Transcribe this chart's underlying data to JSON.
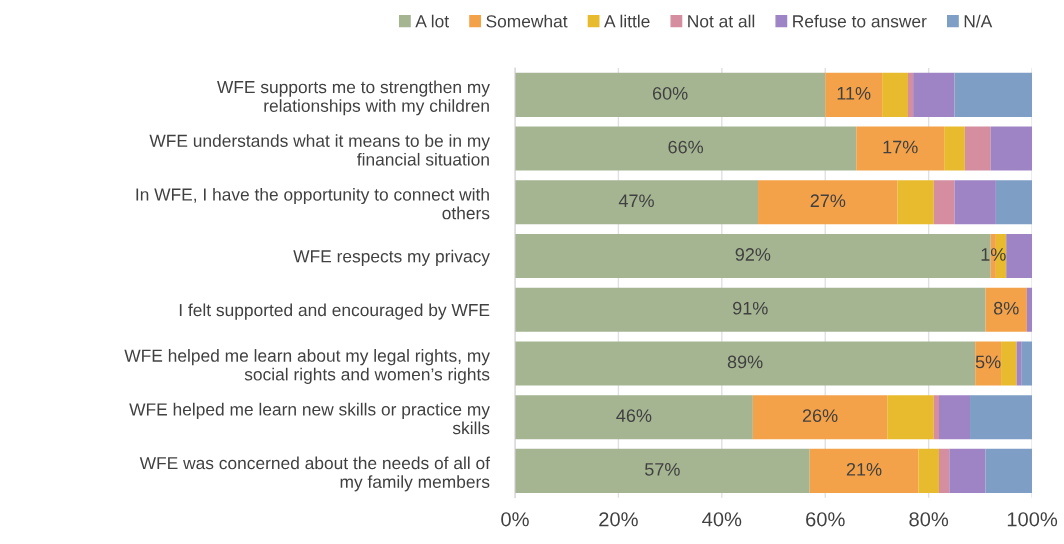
{
  "chart_data": {
    "type": "bar",
    "orientation": "horizontal",
    "stacked": true,
    "categories": [
      "WFE supports me to strengthen my\nrelationships with my children",
      "WFE understands what it means to be in my\nfinancial situation",
      "In WFE, I have the opportunity to connect with\nothers",
      "WFE respects my privacy",
      "I felt supported and encouraged by WFE",
      "WFE helped me learn about my legal rights, my\nsocial rights and women’s rights",
      "WFE helped me learn new skills or practice my\nskills",
      "WFE was concerned about the needs of all of\nmy family members"
    ],
    "series": [
      {
        "name": "A lot",
        "color": "#a5b592",
        "values": [
          60,
          66,
          47,
          92,
          91,
          89,
          46,
          57
        ],
        "value_labels": [
          "60%",
          "66%",
          "47%",
          "92%",
          "91%",
          "89%",
          "46%",
          "57%"
        ]
      },
      {
        "name": "Somewhat",
        "color": "#f4a24a",
        "values": [
          11,
          17,
          27,
          1,
          8,
          5,
          26,
          21
        ],
        "value_labels": [
          "11%",
          "17%",
          "27%",
          "1%",
          "8%",
          "5%",
          "26%",
          "21%"
        ]
      },
      {
        "name": "A little",
        "color": "#e8bb2e",
        "values": [
          5,
          4,
          7,
          2,
          0,
          3,
          9,
          4
        ]
      },
      {
        "name": "Not at all",
        "color": "#d48ea0",
        "values": [
          1,
          5,
          4,
          0,
          0,
          0,
          1,
          2
        ]
      },
      {
        "name": "Refuse to answer",
        "color": "#9e84c4",
        "values": [
          8,
          8,
          8,
          5,
          1,
          1,
          6,
          7
        ]
      },
      {
        "name": "N/A",
        "color": "#7e9ec6",
        "values": [
          15,
          0,
          7,
          0,
          0,
          2,
          12,
          9
        ]
      }
    ],
    "xlim": [
      0,
      100
    ],
    "xticks": [
      {
        "value": 0,
        "label": "0%"
      },
      {
        "value": 20,
        "label": "20%"
      },
      {
        "value": 40,
        "label": "40%"
      },
      {
        "value": 60,
        "label": "60%"
      },
      {
        "value": 80,
        "label": "80%"
      },
      {
        "value": 100,
        "label": "100%"
      }
    ],
    "grid": "x",
    "legend": "top"
  }
}
